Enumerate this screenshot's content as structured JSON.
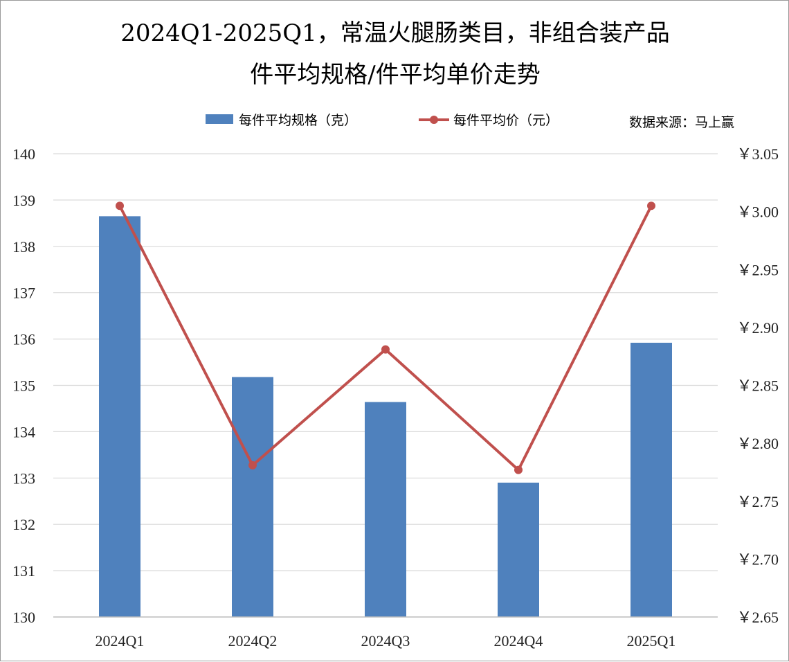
{
  "chart_data": {
    "type": "bar",
    "title_line1": "2024Q1-2025Q1，常温火腿肠类目，非组合装产品",
    "title_line2": "件平均规格/件平均单价走势",
    "source": "数据来源：马上赢",
    "categories": [
      "2024Q1",
      "2024Q2",
      "2024Q3",
      "2024Q4",
      "2025Q1"
    ],
    "series": [
      {
        "name": "每件平均规格（克）",
        "type": "bar",
        "axis": "left",
        "color": "#4f81bd",
        "values": [
          138.65,
          135.18,
          134.64,
          132.9,
          135.92
        ]
      },
      {
        "name": "每件平均价（元）",
        "type": "line",
        "axis": "right",
        "color": "#c0504d",
        "values": [
          3.005,
          2.781,
          2.881,
          2.777,
          3.005
        ]
      }
    ],
    "y_left": {
      "min": 130,
      "max": 140,
      "step": 1,
      "tick_labels": [
        "130",
        "131",
        "132",
        "133",
        "134",
        "135",
        "136",
        "137",
        "138",
        "139",
        "140"
      ]
    },
    "y_right": {
      "min": 2.65,
      "max": 3.05,
      "step": 0.05,
      "tick_labels": [
        "￥2.65",
        "￥2.70",
        "￥2.75",
        "￥2.80",
        "￥2.85",
        "￥2.90",
        "￥2.95",
        "￥3.00",
        "￥3.05"
      ]
    },
    "grid": true,
    "legend_position": "top"
  }
}
